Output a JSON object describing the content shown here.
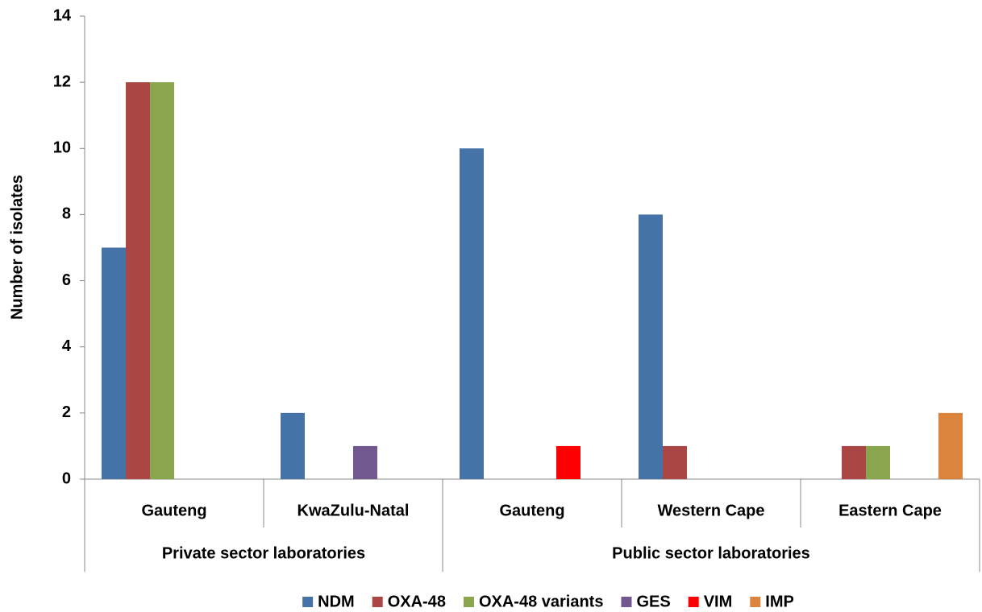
{
  "chart_data": {
    "type": "bar",
    "y_label": "Number of isolates",
    "groups": [
      {
        "name": "Private sector laboratories",
        "categories": [
          "Gauteng",
          "KwaZulu-Natal"
        ]
      },
      {
        "name": "Public sector laboratories",
        "categories": [
          "Gauteng",
          "Western Cape",
          "Eastern Cape"
        ]
      }
    ],
    "series": [
      {
        "name": "NDM",
        "color": "#4572A7",
        "values": [
          7,
          2,
          10,
          8,
          0
        ]
      },
      {
        "name": "OXA-48",
        "color": "#AA4643",
        "values": [
          12,
          0,
          0,
          1,
          1
        ]
      },
      {
        "name": "OXA-48 variants",
        "color": "#89A54E",
        "values": [
          12,
          0,
          0,
          0,
          1
        ]
      },
      {
        "name": "GES",
        "color": "#71588F",
        "values": [
          0,
          1,
          0,
          0,
          0
        ]
      },
      {
        "name": "VIM",
        "color": "#FF0000",
        "values": [
          0,
          0,
          1,
          0,
          0
        ]
      },
      {
        "name": "IMP",
        "color": "#DB843D",
        "values": [
          0,
          0,
          0,
          0,
          2
        ]
      }
    ],
    "ylim": [
      0,
      14
    ],
    "yticks": [
      0,
      2,
      4,
      6,
      8,
      10,
      12,
      14
    ],
    "legend": "bottom"
  }
}
